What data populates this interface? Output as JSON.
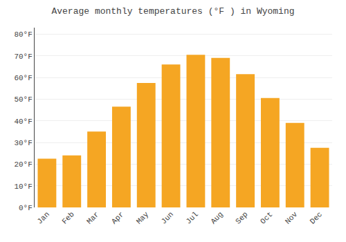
{
  "chart_data": {
    "type": "bar",
    "title": "Average monthly temperatures (°F ) in Wyoming",
    "categories": [
      "Jan",
      "Feb",
      "Mar",
      "Apr",
      "May",
      "Jun",
      "Jul",
      "Aug",
      "Sep",
      "Oct",
      "Nov",
      "Dec"
    ],
    "values": [
      22.5,
      24.0,
      35.0,
      46.5,
      57.5,
      66.0,
      70.5,
      69.0,
      61.5,
      50.5,
      39.0,
      27.5
    ],
    "color": "#F5A623",
    "ylim": [
      0,
      83
    ],
    "yticks": [
      {
        "value": 0,
        "label": "0°F"
      },
      {
        "value": 10,
        "label": "10°F"
      },
      {
        "value": 20,
        "label": "20°F"
      },
      {
        "value": 30,
        "label": "30°F"
      },
      {
        "value": 40,
        "label": "40°F"
      },
      {
        "value": 50,
        "label": "50°F"
      },
      {
        "value": 60,
        "label": "60°F"
      },
      {
        "value": 70,
        "label": "70°F"
      },
      {
        "value": 80,
        "label": "80°F"
      }
    ],
    "grid": true
  }
}
